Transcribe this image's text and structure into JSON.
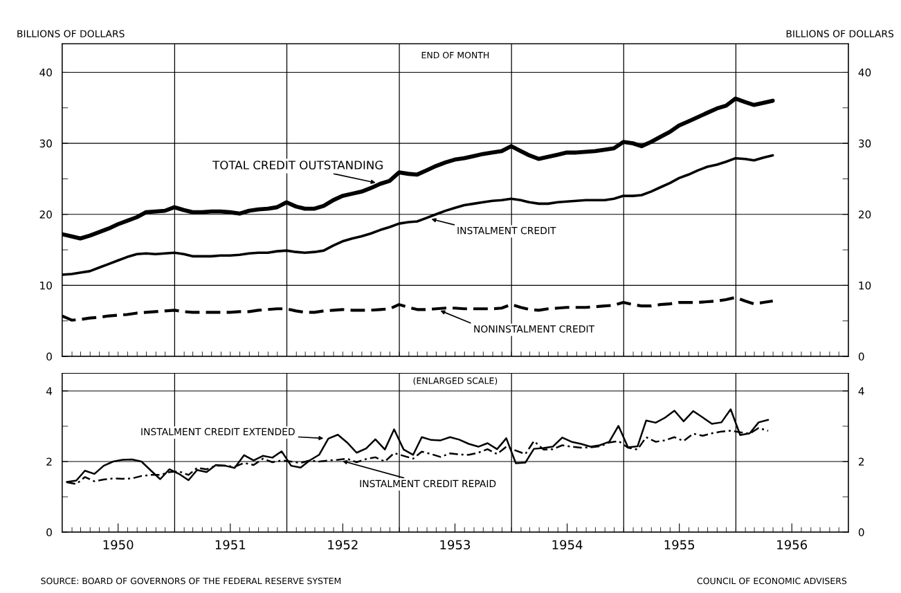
{
  "chart_data": [
    {
      "type": "line",
      "subtitle": "END OF MONTH",
      "ylabel": "BILLIONS OF DOLLARS",
      "y2label": "BILLIONS OF DOLLARS",
      "x": [
        "1949-12-31",
        "1950-01-31",
        "1950-02-28",
        "1950-03-31",
        "1950-04-30",
        "1950-05-31",
        "1950-06-30",
        "1950-07-31",
        "1950-08-31",
        "1950-09-30",
        "1950-10-31",
        "1950-11-30",
        "1950-12-31",
        "1951-01-31",
        "1951-02-28",
        "1951-03-31",
        "1951-04-30",
        "1951-05-31",
        "1951-06-30",
        "1951-07-31",
        "1951-08-31",
        "1951-09-30",
        "1951-10-31",
        "1951-11-30",
        "1951-12-31",
        "1952-01-31",
        "1952-02-29",
        "1952-03-31",
        "1952-04-30",
        "1952-05-31",
        "1952-06-30",
        "1952-07-31",
        "1952-08-31",
        "1952-09-30",
        "1952-10-31",
        "1952-11-30",
        "1952-12-31",
        "1953-01-31",
        "1953-02-28",
        "1953-03-31",
        "1953-04-30",
        "1953-05-31",
        "1953-06-30",
        "1953-07-31",
        "1953-08-31",
        "1953-09-30",
        "1953-10-31",
        "1953-11-30",
        "1953-12-31",
        "1954-01-31",
        "1954-02-28",
        "1954-03-31",
        "1954-04-30",
        "1954-05-31",
        "1954-06-30",
        "1954-07-31",
        "1954-08-31",
        "1954-09-30",
        "1954-10-31",
        "1954-11-30",
        "1954-12-31",
        "1955-01-31",
        "1955-02-28",
        "1955-03-31",
        "1955-04-30",
        "1955-05-31",
        "1955-06-30",
        "1955-07-31",
        "1955-08-31",
        "1955-09-30",
        "1955-10-31",
        "1955-11-30",
        "1955-12-31",
        "1956-01-31",
        "1956-02-29",
        "1956-03-31",
        "1956-04-30"
      ],
      "series": [
        {
          "name": "TOTAL CREDIT OUTSTANDING",
          "color": "#000000",
          "line_style": "solid",
          "values": [
            17.2,
            16.9,
            16.6,
            17.0,
            17.5,
            18.0,
            18.6,
            19.1,
            19.6,
            20.3,
            20.4,
            20.5,
            21.0,
            20.6,
            20.3,
            20.3,
            20.4,
            20.4,
            20.3,
            20.1,
            20.5,
            20.7,
            20.8,
            21.0,
            21.7,
            21.1,
            20.8,
            20.8,
            21.2,
            22.0,
            22.6,
            22.9,
            23.2,
            23.7,
            24.3,
            24.7,
            25.9,
            25.7,
            25.6,
            26.2,
            26.8,
            27.3,
            27.7,
            27.9,
            28.2,
            28.5,
            28.7,
            28.9,
            29.6,
            28.9,
            28.3,
            27.8,
            28.1,
            28.4,
            28.7,
            28.7,
            28.8,
            28.9,
            29.1,
            29.3,
            30.2,
            30.0,
            29.6,
            30.2,
            30.9,
            31.6,
            32.5,
            33.1,
            33.7,
            34.3,
            34.9,
            35.3,
            36.3,
            35.8,
            35.4,
            35.7,
            36.0
          ]
        },
        {
          "name": "INSTALMENT CREDIT",
          "color": "#000000",
          "line_style": "solid",
          "values": [
            11.5,
            11.6,
            11.8,
            12.0,
            12.5,
            13.0,
            13.5,
            14.0,
            14.4,
            14.5,
            14.4,
            14.5,
            14.6,
            14.4,
            14.1,
            14.1,
            14.1,
            14.2,
            14.2,
            14.3,
            14.5,
            14.6,
            14.6,
            14.8,
            14.9,
            14.7,
            14.6,
            14.7,
            14.9,
            15.6,
            16.2,
            16.6,
            16.9,
            17.3,
            17.8,
            18.2,
            18.7,
            18.9,
            19.0,
            19.5,
            20.0,
            20.5,
            20.9,
            21.3,
            21.5,
            21.7,
            21.9,
            22.0,
            22.2,
            22.0,
            21.7,
            21.5,
            21.5,
            21.7,
            21.8,
            21.9,
            22.0,
            22.0,
            22.0,
            22.2,
            22.6,
            22.6,
            22.7,
            23.2,
            23.8,
            24.4,
            25.1,
            25.6,
            26.2,
            26.7,
            27.0,
            27.4,
            27.9,
            27.8,
            27.6,
            28.0,
            28.3
          ]
        },
        {
          "name": "NONINSTALMENT CREDIT",
          "color": "#000000",
          "line_style": "dashed",
          "values": [
            5.7,
            5.1,
            5.2,
            5.4,
            5.5,
            5.7,
            5.8,
            5.9,
            6.1,
            6.2,
            6.3,
            6.4,
            6.5,
            6.3,
            6.2,
            6.2,
            6.2,
            6.2,
            6.2,
            6.3,
            6.3,
            6.5,
            6.6,
            6.7,
            6.7,
            6.4,
            6.2,
            6.2,
            6.4,
            6.5,
            6.6,
            6.5,
            6.5,
            6.5,
            6.6,
            6.7,
            7.3,
            6.9,
            6.6,
            6.6,
            6.7,
            6.8,
            6.8,
            6.7,
            6.7,
            6.7,
            6.7,
            6.8,
            7.3,
            6.9,
            6.6,
            6.5,
            6.7,
            6.8,
            6.9,
            6.9,
            6.9,
            7.0,
            7.1,
            7.2,
            7.6,
            7.3,
            7.1,
            7.1,
            7.3,
            7.4,
            7.6,
            7.6,
            7.6,
            7.7,
            7.8,
            8.0,
            8.3,
            7.8,
            7.4,
            7.6,
            7.8
          ]
        }
      ],
      "xlim": [
        "1949-12-31",
        "1957-01-01"
      ],
      "xticks": [
        {
          "value": "1950-02-01",
          "label": null
        },
        {
          "value": "1950-03-01",
          "label": null
        },
        {
          "value": "1950-04-01",
          "label": null
        },
        {
          "value": "1950-05-01",
          "label": null
        },
        {
          "value": "1950-06-01",
          "label": null
        },
        {
          "value": "1950-07-01",
          "label": null
        },
        {
          "value": "1950-08-01",
          "label": null
        },
        {
          "value": "1950-09-01",
          "label": null
        },
        {
          "value": "1950-10-01",
          "label": null
        },
        {
          "value": "1950-11-01",
          "label": null
        },
        {
          "value": "1950-12-01",
          "label": null
        },
        {
          "value": "1951-01-01",
          "label": null
        },
        {
          "value": "1951-02-01",
          "label": null
        },
        {
          "value": "1951-03-01",
          "label": null
        },
        {
          "value": "1951-04-01",
          "label": null
        },
        {
          "value": "1951-05-01",
          "label": null
        },
        {
          "value": "1951-06-01",
          "label": null
        },
        {
          "value": "1951-07-01",
          "label": null
        },
        {
          "value": "1951-08-01",
          "label": null
        },
        {
          "value": "1951-09-01",
          "label": null
        },
        {
          "value": "1951-10-01",
          "label": null
        },
        {
          "value": "1951-11-01",
          "label": null
        },
        {
          "value": "1951-12-01",
          "label": null
        },
        {
          "value": "1952-01-01",
          "label": null
        },
        {
          "value": "1952-02-01",
          "label": null
        },
        {
          "value": "1952-03-01",
          "label": null
        },
        {
          "value": "1952-04-01",
          "label": null
        },
        {
          "value": "1952-05-01",
          "label": null
        },
        {
          "value": "1952-06-01",
          "label": null
        },
        {
          "value": "1952-07-01",
          "label": null
        },
        {
          "value": "1952-08-01",
          "label": null
        },
        {
          "value": "1952-09-01",
          "label": null
        },
        {
          "value": "1952-10-01",
          "label": null
        },
        {
          "value": "1952-11-01",
          "label": null
        },
        {
          "value": "1952-12-01",
          "label": null
        },
        {
          "value": "1953-01-01",
          "label": null
        },
        {
          "value": "1953-02-01",
          "label": null
        },
        {
          "value": "1953-03-01",
          "label": null
        },
        {
          "value": "1953-04-01",
          "label": null
        },
        {
          "value": "1953-05-01",
          "label": null
        },
        {
          "value": "1953-06-01",
          "label": null
        },
        {
          "value": "1953-07-01",
          "label": null
        },
        {
          "value": "1953-08-01",
          "label": null
        },
        {
          "value": "1953-09-01",
          "label": null
        },
        {
          "value": "1953-10-01",
          "label": null
        },
        {
          "value": "1953-11-01",
          "label": null
        },
        {
          "value": "1953-12-01",
          "label": null
        },
        {
          "value": "1954-01-01",
          "label": null
        },
        {
          "value": "1954-02-01",
          "label": null
        },
        {
          "value": "1954-03-01",
          "label": null
        },
        {
          "value": "1954-04-01",
          "label": null
        },
        {
          "value": "1954-05-01",
          "label": null
        },
        {
          "value": "1954-06-01",
          "label": null
        },
        {
          "value": "1954-07-01",
          "label": null
        },
        {
          "value": "1954-08-01",
          "label": null
        },
        {
          "value": "1954-09-01",
          "label": null
        },
        {
          "value": "1954-10-01",
          "label": null
        },
        {
          "value": "1954-11-01",
          "label": null
        },
        {
          "value": "1954-12-01",
          "label": null
        },
        {
          "value": "1955-01-01",
          "label": null
        },
        {
          "value": "1955-02-01",
          "label": null
        },
        {
          "value": "1955-03-01",
          "label": null
        },
        {
          "value": "1955-04-01",
          "label": null
        },
        {
          "value": "1955-05-01",
          "label": null
        },
        {
          "value": "1955-06-01",
          "label": null
        },
        {
          "value": "1955-07-01",
          "label": null
        },
        {
          "value": "1955-08-01",
          "label": null
        },
        {
          "value": "1955-09-01",
          "label": null
        },
        {
          "value": "1955-10-01",
          "label": null
        },
        {
          "value": "1955-11-01",
          "label": null
        },
        {
          "value": "1955-12-01",
          "label": null
        },
        {
          "value": "1956-01-01",
          "label": null
        },
        {
          "value": "1956-02-01",
          "label": null
        },
        {
          "value": "1956-03-01",
          "label": null
        },
        {
          "value": "1956-04-01",
          "label": null
        },
        {
          "value": "1956-05-01",
          "label": null
        },
        {
          "value": "1956-06-01",
          "label": null
        },
        {
          "value": "1956-07-01",
          "label": null
        },
        {
          "value": "1956-08-01",
          "label": null
        },
        {
          "value": "1956-09-01",
          "label": null
        },
        {
          "value": "1956-10-01",
          "label": null
        },
        {
          "value": "1956-11-01",
          "label": null
        },
        {
          "value": "1956-12-01",
          "label": null
        }
      ],
      "ylim": [
        0,
        44
      ],
      "yticks": [
        0,
        {
          "value": 5,
          "label": null
        },
        10,
        {
          "value": 15,
          "label": null
        },
        20,
        {
          "value": 25,
          "label": null
        },
        30,
        {
          "value": 35,
          "label": null
        },
        40
      ],
      "y2lim": [
        0,
        44
      ],
      "y2ticks": [
        0,
        {
          "value": 5,
          "label": null
        },
        10,
        {
          "value": 15,
          "label": null
        },
        20,
        {
          "value": 25,
          "label": null
        },
        30,
        {
          "value": 35,
          "label": null
        },
        40
      ],
      "tick_labels": "y",
      "grid": "y",
      "marker": "none",
      "ref_lines": [
        {
          "axis": "x",
          "value": "1951-01-01"
        },
        {
          "axis": "x",
          "value": "1952-01-01"
        },
        {
          "axis": "x",
          "value": "1953-01-01"
        },
        {
          "axis": "x",
          "value": "1954-01-01"
        },
        {
          "axis": "x",
          "value": "1955-01-01"
        },
        {
          "axis": "x",
          "value": "1956-01-01"
        }
      ]
    },
    {
      "type": "line",
      "subtitle": "(ENLARGED SCALE)",
      "x": [
        "1950-01-15",
        "1950-02-15",
        "1950-03-15",
        "1950-04-15",
        "1950-05-15",
        "1950-06-15",
        "1950-07-15",
        "1950-08-15",
        "1950-09-15",
        "1950-10-15",
        "1950-11-15",
        "1950-12-15",
        "1951-01-15",
        "1951-02-15",
        "1951-03-15",
        "1951-04-15",
        "1951-05-15",
        "1951-06-15",
        "1951-07-15",
        "1951-08-15",
        "1951-09-15",
        "1951-10-15",
        "1951-11-15",
        "1951-12-15",
        "1952-01-15",
        "1952-02-15",
        "1952-03-15",
        "1952-04-15",
        "1952-05-15",
        "1952-06-15",
        "1952-07-15",
        "1952-08-15",
        "1952-09-15",
        "1952-10-15",
        "1952-11-15",
        "1952-12-15",
        "1953-01-15",
        "1953-02-15",
        "1953-03-15",
        "1953-04-15",
        "1953-05-15",
        "1953-06-15",
        "1953-07-15",
        "1953-08-15",
        "1953-09-15",
        "1953-10-15",
        "1953-11-15",
        "1953-12-15",
        "1954-01-15",
        "1954-02-15",
        "1954-03-15",
        "1954-04-15",
        "1954-05-15",
        "1954-06-15",
        "1954-07-15",
        "1954-08-15",
        "1954-09-15",
        "1954-10-15",
        "1954-11-15",
        "1954-12-15",
        "1955-01-15",
        "1955-02-15",
        "1955-03-15",
        "1955-04-15",
        "1955-05-15",
        "1955-06-15",
        "1955-07-15",
        "1955-08-15",
        "1955-09-15",
        "1955-10-15",
        "1955-11-15",
        "1955-12-15",
        "1956-01-15",
        "1956-02-15",
        "1956-03-15",
        "1956-04-15"
      ],
      "series": [
        {
          "name": "INSTALMENT CREDIT EXTENDED",
          "color": "#000000",
          "line_style": "solid",
          "values": [
            1.42,
            1.46,
            1.74,
            1.65,
            1.88,
            2.0,
            2.05,
            2.06,
            2.0,
            1.75,
            1.5,
            1.78,
            1.65,
            1.47,
            1.76,
            1.7,
            1.9,
            1.88,
            1.82,
            2.18,
            2.03,
            2.16,
            2.11,
            2.29,
            1.88,
            1.83,
            2.03,
            2.19,
            2.65,
            2.76,
            2.54,
            2.25,
            2.37,
            2.63,
            2.34,
            2.91,
            2.34,
            2.19,
            2.69,
            2.61,
            2.6,
            2.69,
            2.62,
            2.5,
            2.42,
            2.52,
            2.35,
            2.66,
            1.95,
            1.97,
            2.36,
            2.38,
            2.42,
            2.68,
            2.56,
            2.5,
            2.42,
            2.46,
            2.56,
            3.01,
            2.4,
            2.43,
            3.16,
            3.1,
            3.24,
            3.44,
            3.14,
            3.43,
            3.25,
            3.07,
            3.11,
            3.48,
            2.75,
            2.8,
            3.11,
            3.18
          ]
        },
        {
          "name": "INSTALMENT CREDIT REPAID",
          "color": "#000000",
          "line_style": "dashdot",
          "values": [
            1.41,
            1.36,
            1.56,
            1.44,
            1.49,
            1.52,
            1.51,
            1.52,
            1.59,
            1.62,
            1.62,
            1.7,
            1.72,
            1.62,
            1.82,
            1.78,
            1.88,
            1.88,
            1.85,
            1.96,
            1.9,
            2.08,
            1.98,
            2.03,
            2.0,
            1.96,
            2.03,
            2.0,
            2.03,
            2.05,
            2.08,
            1.98,
            2.07,
            2.12,
            2.0,
            2.24,
            2.16,
            2.08,
            2.28,
            2.21,
            2.13,
            2.23,
            2.2,
            2.19,
            2.25,
            2.35,
            2.21,
            2.42,
            2.31,
            2.21,
            2.58,
            2.34,
            2.35,
            2.46,
            2.42,
            2.39,
            2.4,
            2.43,
            2.54,
            2.58,
            2.39,
            2.34,
            2.69,
            2.56,
            2.6,
            2.69,
            2.58,
            2.79,
            2.73,
            2.8,
            2.85,
            2.87,
            2.83,
            2.79,
            2.95,
            2.87
          ]
        }
      ],
      "xlim": [
        "1949-12-31",
        "1957-01-01"
      ],
      "xticks": [
        {
          "value": "1950-02-01",
          "label": null
        },
        {
          "value": "1950-03-01",
          "label": null
        },
        {
          "value": "1950-04-01",
          "label": null
        },
        {
          "value": "1950-05-01",
          "label": null
        },
        {
          "value": "1950-06-01",
          "label": null
        },
        {
          "value": "1950-07-01",
          "label": "1950"
        },
        {
          "value": "1950-08-01",
          "label": null
        },
        {
          "value": "1950-09-01",
          "label": null
        },
        {
          "value": "1950-10-01",
          "label": null
        },
        {
          "value": "1950-11-01",
          "label": null
        },
        {
          "value": "1950-12-01",
          "label": null
        },
        {
          "value": "1951-01-01",
          "label": null
        },
        {
          "value": "1951-02-01",
          "label": null
        },
        {
          "value": "1951-03-01",
          "label": null
        },
        {
          "value": "1951-04-01",
          "label": null
        },
        {
          "value": "1951-05-01",
          "label": null
        },
        {
          "value": "1951-06-01",
          "label": null
        },
        {
          "value": "1951-07-01",
          "label": "1951"
        },
        {
          "value": "1951-08-01",
          "label": null
        },
        {
          "value": "1951-09-01",
          "label": null
        },
        {
          "value": "1951-10-01",
          "label": null
        },
        {
          "value": "1951-11-01",
          "label": null
        },
        {
          "value": "1951-12-01",
          "label": null
        },
        {
          "value": "1952-01-01",
          "label": null
        },
        {
          "value": "1952-02-01",
          "label": null
        },
        {
          "value": "1952-03-01",
          "label": null
        },
        {
          "value": "1952-04-01",
          "label": null
        },
        {
          "value": "1952-05-01",
          "label": null
        },
        {
          "value": "1952-06-01",
          "label": null
        },
        {
          "value": "1952-07-01",
          "label": "1952"
        },
        {
          "value": "1952-08-01",
          "label": null
        },
        {
          "value": "1952-09-01",
          "label": null
        },
        {
          "value": "1952-10-01",
          "label": null
        },
        {
          "value": "1952-11-01",
          "label": null
        },
        {
          "value": "1952-12-01",
          "label": null
        },
        {
          "value": "1953-01-01",
          "label": null
        },
        {
          "value": "1953-02-01",
          "label": null
        },
        {
          "value": "1953-03-01",
          "label": null
        },
        {
          "value": "1953-04-01",
          "label": null
        },
        {
          "value": "1953-05-01",
          "label": null
        },
        {
          "value": "1953-06-01",
          "label": null
        },
        {
          "value": "1953-07-01",
          "label": "1953"
        },
        {
          "value": "1953-08-01",
          "label": null
        },
        {
          "value": "1953-09-01",
          "label": null
        },
        {
          "value": "1953-10-01",
          "label": null
        },
        {
          "value": "1953-11-01",
          "label": null
        },
        {
          "value": "1953-12-01",
          "label": null
        },
        {
          "value": "1954-01-01",
          "label": null
        },
        {
          "value": "1954-02-01",
          "label": null
        },
        {
          "value": "1954-03-01",
          "label": null
        },
        {
          "value": "1954-04-01",
          "label": null
        },
        {
          "value": "1954-05-01",
          "label": null
        },
        {
          "value": "1954-06-01",
          "label": null
        },
        {
          "value": "1954-07-01",
          "label": "1954"
        },
        {
          "value": "1954-08-01",
          "label": null
        },
        {
          "value": "1954-09-01",
          "label": null
        },
        {
          "value": "1954-10-01",
          "label": null
        },
        {
          "value": "1954-11-01",
          "label": null
        },
        {
          "value": "1954-12-01",
          "label": null
        },
        {
          "value": "1955-01-01",
          "label": null
        },
        {
          "value": "1955-02-01",
          "label": null
        },
        {
          "value": "1955-03-01",
          "label": null
        },
        {
          "value": "1955-04-01",
          "label": null
        },
        {
          "value": "1955-05-01",
          "label": null
        },
        {
          "value": "1955-06-01",
          "label": null
        },
        {
          "value": "1955-07-01",
          "label": "1955"
        },
        {
          "value": "1955-08-01",
          "label": null
        },
        {
          "value": "1955-09-01",
          "label": null
        },
        {
          "value": "1955-10-01",
          "label": null
        },
        {
          "value": "1955-11-01",
          "label": null
        },
        {
          "value": "1955-12-01",
          "label": null
        },
        {
          "value": "1956-01-01",
          "label": null
        },
        {
          "value": "1956-02-01",
          "label": null
        },
        {
          "value": "1956-03-01",
          "label": null
        },
        {
          "value": "1956-04-01",
          "label": null
        },
        {
          "value": "1956-05-01",
          "label": null
        },
        {
          "value": "1956-06-01",
          "label": null
        },
        {
          "value": "1956-07-01",
          "label": "1956"
        },
        {
          "value": "1956-08-01",
          "label": null
        },
        {
          "value": "1956-09-01",
          "label": null
        },
        {
          "value": "1956-10-01",
          "label": null
        },
        {
          "value": "1956-11-01",
          "label": null
        },
        {
          "value": "1956-12-01",
          "label": null
        }
      ],
      "ylim": [
        0,
        4.5
      ],
      "yticks": [
        0,
        {
          "value": 1,
          "label": null
        },
        2,
        {
          "value": 3,
          "label": null
        },
        4
      ],
      "y2lim": [
        0,
        4.5
      ],
      "y2ticks": [
        0,
        {
          "value": 1,
          "label": null
        },
        2,
        {
          "value": 3,
          "label": null
        },
        4
      ],
      "grid": "y",
      "marker": "none",
      "ref_lines": [
        {
          "axis": "x",
          "value": "1951-01-01"
        },
        {
          "axis": "x",
          "value": "1952-01-01"
        },
        {
          "axis": "x",
          "value": "1953-01-01"
        },
        {
          "axis": "x",
          "value": "1954-01-01"
        },
        {
          "axis": "x",
          "value": "1955-01-01"
        },
        {
          "axis": "x",
          "value": "1956-01-01"
        }
      ],
      "annotations": [
        "SOURCE: BOARD OF GOVERNORS OF THE FEDERAL RESERVE SYSTEM",
        "COUNCIL OF ECONOMIC ADVISERS"
      ]
    }
  ]
}
